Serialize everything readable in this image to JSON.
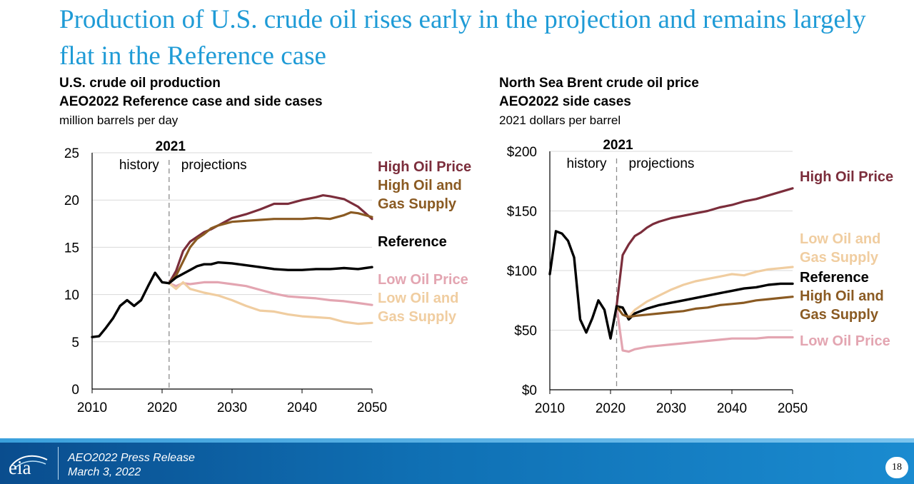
{
  "slide": {
    "title": "Production of U.S. crude oil rises early in the projection and remains largely flat in the Reference case"
  },
  "footer": {
    "logo": "eia",
    "line1": "AEO2022 Press Release",
    "line2": "March 3, 2022",
    "page": "18"
  },
  "colors": {
    "title": "#1f9bd6",
    "high_oil_price": "#7b2d3b",
    "high_oil_gas_supply": "#8a5a22",
    "reference": "#000000",
    "low_oil_price": "#e3a5b1",
    "low_oil_gas_supply": "#f0cda0",
    "footer": "#0f6fb3"
  },
  "chart_data": [
    {
      "type": "line",
      "title": "U.S. crude oil production",
      "subtitle": "AEO2022 Reference case and side cases",
      "unit": "million barrels per day",
      "xlim": [
        2010,
        2050
      ],
      "ylim": [
        0,
        25
      ],
      "xticks": [
        2010,
        2020,
        2030,
        2040,
        2050
      ],
      "yticks": [
        0,
        5,
        10,
        15,
        20,
        25
      ],
      "ytick_labels": [
        "0",
        "5",
        "10",
        "15",
        "20",
        "25"
      ],
      "grid": "horizontal",
      "divider": {
        "x": 2021,
        "label": "2021",
        "left_label": "history",
        "right_label": "projections"
      },
      "history": {
        "x": [
          2010,
          2011,
          2012,
          2013,
          2014,
          2015,
          2016,
          2017,
          2018,
          2019,
          2020,
          2021
        ],
        "values": [
          5.5,
          5.6,
          6.5,
          7.5,
          8.8,
          9.4,
          8.8,
          9.4,
          10.9,
          12.3,
          11.3,
          11.2
        ]
      },
      "series": [
        {
          "name": "High Oil Price",
          "color": "#7b2d3b",
          "label_lines": [
            "High Oil Price"
          ],
          "x": [
            2021,
            2022,
            2023,
            2024,
            2025,
            2026,
            2027,
            2028,
            2029,
            2030,
            2032,
            2034,
            2036,
            2038,
            2040,
            2042,
            2043,
            2044,
            2046,
            2048,
            2050
          ],
          "values": [
            11.2,
            12.5,
            14.6,
            15.6,
            16.1,
            16.6,
            16.9,
            17.3,
            17.7,
            18.1,
            18.5,
            19.0,
            19.6,
            19.6,
            20.0,
            20.3,
            20.5,
            20.4,
            20.1,
            19.3,
            18.0
          ]
        },
        {
          "name": "High Oil and Gas Supply",
          "color": "#8a5a22",
          "label_lines": [
            "High Oil and",
            "Gas Supply"
          ],
          "x": [
            2021,
            2022,
            2023,
            2024,
            2025,
            2026,
            2027,
            2028,
            2030,
            2032,
            2034,
            2036,
            2038,
            2040,
            2042,
            2044,
            2046,
            2047,
            2048,
            2050
          ],
          "values": [
            11.2,
            12.0,
            13.5,
            15.0,
            15.9,
            16.4,
            17.0,
            17.3,
            17.7,
            17.8,
            17.9,
            18.0,
            18.0,
            18.0,
            18.1,
            18.0,
            18.4,
            18.7,
            18.6,
            18.2
          ]
        },
        {
          "name": "Reference",
          "color": "#000000",
          "label_lines": [
            "Reference"
          ],
          "x": [
            2021,
            2022,
            2023,
            2024,
            2025,
            2026,
            2027,
            2028,
            2030,
            2032,
            2034,
            2036,
            2038,
            2040,
            2042,
            2044,
            2046,
            2048,
            2050
          ],
          "values": [
            11.2,
            11.8,
            12.2,
            12.6,
            13.0,
            13.2,
            13.2,
            13.4,
            13.3,
            13.1,
            12.9,
            12.7,
            12.6,
            12.6,
            12.7,
            12.7,
            12.8,
            12.7,
            12.9
          ]
        },
        {
          "name": "Low Oil Price",
          "color": "#e3a5b1",
          "label_lines": [
            "Low Oil Price"
          ],
          "x": [
            2021,
            2022,
            2023,
            2024,
            2026,
            2028,
            2030,
            2032,
            2034,
            2036,
            2038,
            2040,
            2042,
            2044,
            2046,
            2048,
            2050
          ],
          "values": [
            11.2,
            10.9,
            11.2,
            11.1,
            11.3,
            11.3,
            11.1,
            10.9,
            10.5,
            10.1,
            9.8,
            9.7,
            9.6,
            9.4,
            9.3,
            9.1,
            8.9
          ]
        },
        {
          "name": "Low Oil and Gas Supply",
          "color": "#f0cda0",
          "label_lines": [
            "Low Oil and",
            "Gas Supply"
          ],
          "x": [
            2021,
            2022,
            2023,
            2024,
            2026,
            2028,
            2030,
            2032,
            2034,
            2036,
            2038,
            2040,
            2042,
            2044,
            2046,
            2048,
            2050
          ],
          "values": [
            11.2,
            10.6,
            11.3,
            10.6,
            10.2,
            9.9,
            9.4,
            8.8,
            8.3,
            8.2,
            7.9,
            7.7,
            7.6,
            7.5,
            7.1,
            6.9,
            7.0
          ]
        }
      ]
    },
    {
      "type": "line",
      "title": "North Sea Brent crude oil price",
      "subtitle": "AEO2022 side cases",
      "unit": "2021 dollars per barrel",
      "xlim": [
        2010,
        2050
      ],
      "ylim": [
        0,
        200
      ],
      "xticks": [
        2010,
        2020,
        2030,
        2040,
        2050
      ],
      "yticks": [
        0,
        50,
        100,
        150,
        200
      ],
      "ytick_labels": [
        "$0",
        "$50",
        "$100",
        "$150",
        "$200"
      ],
      "grid": "horizontal",
      "divider": {
        "x": 2021,
        "label": "2021",
        "left_label": "history",
        "right_label": "projections"
      },
      "history": {
        "x": [
          2010,
          2011,
          2012,
          2013,
          2014,
          2015,
          2016,
          2017,
          2018,
          2019,
          2020,
          2021
        ],
        "values": [
          97,
          133,
          131,
          125,
          111,
          59,
          48,
          60,
          75,
          67,
          43,
          70
        ]
      },
      "series": [
        {
          "name": "High Oil Price",
          "color": "#7b2d3b",
          "label_lines": [
            "High Oil Price"
          ],
          "x": [
            2021,
            2022,
            2023,
            2024,
            2025,
            2026,
            2027,
            2028,
            2030,
            2032,
            2034,
            2036,
            2038,
            2040,
            2042,
            2044,
            2046,
            2048,
            2050
          ],
          "values": [
            70,
            113,
            122,
            129,
            132,
            136,
            139,
            141,
            144,
            146,
            148,
            150,
            153,
            155,
            158,
            160,
            163,
            166,
            169
          ]
        },
        {
          "name": "Low Oil and Gas Supply",
          "color": "#f0cda0",
          "label_lines": [
            "Low Oil and",
            "Gas Supply"
          ],
          "x": [
            2021,
            2022,
            2023,
            2024,
            2026,
            2028,
            2030,
            2032,
            2034,
            2036,
            2038,
            2040,
            2042,
            2044,
            2046,
            2048,
            2050
          ],
          "values": [
            70,
            68,
            61,
            67,
            74,
            79,
            84,
            88,
            91,
            93,
            95,
            97,
            96,
            99,
            101,
            102,
            103
          ]
        },
        {
          "name": "Reference",
          "color": "#000000",
          "label_lines": [
            "Reference"
          ],
          "x": [
            2021,
            2022,
            2023,
            2024,
            2026,
            2028,
            2030,
            2032,
            2034,
            2036,
            2038,
            2040,
            2042,
            2044,
            2046,
            2048,
            2050
          ],
          "values": [
            70,
            69,
            59,
            64,
            68,
            71,
            73,
            75,
            77,
            79,
            81,
            83,
            85,
            86,
            88,
            89,
            89
          ]
        },
        {
          "name": "High Oil and Gas Supply",
          "color": "#8a5a22",
          "label_lines": [
            "High Oil and",
            "Gas Supply"
          ],
          "x": [
            2021,
            2022,
            2023,
            2024,
            2026,
            2028,
            2030,
            2032,
            2034,
            2036,
            2038,
            2040,
            2042,
            2044,
            2046,
            2048,
            2050
          ],
          "values": [
            70,
            63,
            61,
            62,
            63,
            64,
            65,
            66,
            68,
            69,
            71,
            72,
            73,
            75,
            76,
            77,
            78
          ]
        },
        {
          "name": "Low Oil Price",
          "color": "#e3a5b1",
          "label_lines": [
            "Low Oil Price"
          ],
          "x": [
            2021,
            2022,
            2023,
            2024,
            2026,
            2028,
            2030,
            2032,
            2034,
            2036,
            2038,
            2040,
            2042,
            2044,
            2046,
            2048,
            2050
          ],
          "values": [
            70,
            33,
            32,
            34,
            36,
            37,
            38,
            39,
            40,
            41,
            42,
            43,
            43,
            43,
            44,
            44,
            44
          ]
        }
      ]
    }
  ]
}
